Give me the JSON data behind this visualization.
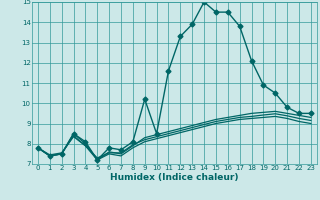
{
  "background_color": "#cce8e8",
  "grid_color": "#339999",
  "line_color": "#006666",
  "xlabel": "Humidex (Indice chaleur)",
  "xlim": [
    -0.5,
    23.5
  ],
  "ylim": [
    7,
    15
  ],
  "yticks": [
    7,
    8,
    9,
    10,
    11,
    12,
    13,
    14,
    15
  ],
  "xticks": [
    0,
    1,
    2,
    3,
    4,
    5,
    6,
    7,
    8,
    9,
    10,
    11,
    12,
    13,
    14,
    15,
    16,
    17,
    18,
    19,
    20,
    21,
    22,
    23
  ],
  "series": [
    {
      "x": [
        0,
        1,
        2,
        3,
        4,
        5,
        6,
        7,
        8,
        9,
        10,
        11,
        12,
        13,
        14,
        15,
        16,
        17,
        18,
        19,
        20,
        21,
        22,
        23
      ],
      "y": [
        7.8,
        7.4,
        7.5,
        8.5,
        8.1,
        7.2,
        7.8,
        7.7,
        8.1,
        10.2,
        8.5,
        11.6,
        13.3,
        13.9,
        15.0,
        14.5,
        14.5,
        13.8,
        12.1,
        10.9,
        10.5,
        9.8,
        9.5,
        9.5
      ],
      "marker": "D",
      "linewidth": 1.0,
      "markersize": 2.5
    },
    {
      "x": [
        0,
        1,
        2,
        3,
        4,
        5,
        6,
        7,
        8,
        9,
        10,
        11,
        12,
        13,
        14,
        15,
        16,
        17,
        18,
        19,
        20,
        21,
        22,
        23
      ],
      "y": [
        7.8,
        7.4,
        7.5,
        8.5,
        8.0,
        7.2,
        7.6,
        7.5,
        7.9,
        8.3,
        8.45,
        8.6,
        8.75,
        8.9,
        9.05,
        9.2,
        9.3,
        9.4,
        9.5,
        9.55,
        9.6,
        9.5,
        9.4,
        9.3
      ],
      "marker": null,
      "linewidth": 0.9,
      "markersize": 0
    },
    {
      "x": [
        0,
        1,
        2,
        3,
        4,
        5,
        6,
        7,
        8,
        9,
        10,
        11,
        12,
        13,
        14,
        15,
        16,
        17,
        18,
        19,
        20,
        21,
        22,
        23
      ],
      "y": [
        7.8,
        7.4,
        7.5,
        8.4,
        7.9,
        7.2,
        7.5,
        7.4,
        7.8,
        8.1,
        8.25,
        8.4,
        8.55,
        8.7,
        8.85,
        9.0,
        9.1,
        9.2,
        9.25,
        9.3,
        9.35,
        9.25,
        9.1,
        9.0
      ],
      "marker": null,
      "linewidth": 0.9,
      "markersize": 0
    },
    {
      "x": [
        0,
        1,
        2,
        3,
        4,
        5,
        6,
        7,
        8,
        9,
        10,
        11,
        12,
        13,
        14,
        15,
        16,
        17,
        18,
        19,
        20,
        21,
        22,
        23
      ],
      "y": [
        7.8,
        7.45,
        7.55,
        8.35,
        7.9,
        7.3,
        7.55,
        7.55,
        7.95,
        8.2,
        8.35,
        8.5,
        8.65,
        8.8,
        8.95,
        9.1,
        9.2,
        9.3,
        9.35,
        9.42,
        9.48,
        9.38,
        9.25,
        9.15
      ],
      "marker": null,
      "linewidth": 0.9,
      "markersize": 0
    }
  ]
}
